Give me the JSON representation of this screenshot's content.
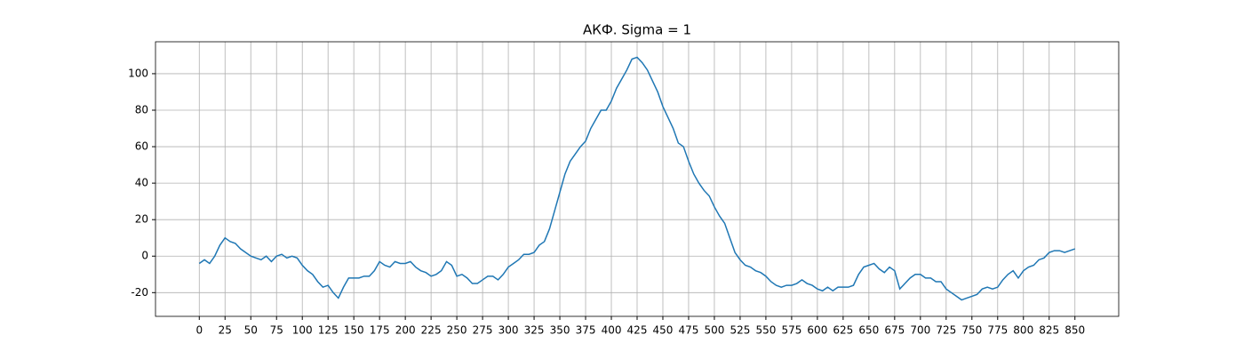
{
  "chart_data": {
    "type": "line",
    "title": "АКФ. Sigma = 1",
    "x": [
      0,
      5,
      10,
      15,
      20,
      25,
      30,
      35,
      40,
      45,
      50,
      55,
      60,
      65,
      70,
      75,
      80,
      85,
      90,
      95,
      100,
      105,
      110,
      115,
      120,
      125,
      130,
      135,
      140,
      145,
      150,
      155,
      160,
      165,
      170,
      175,
      180,
      185,
      190,
      195,
      200,
      205,
      210,
      215,
      220,
      225,
      230,
      235,
      240,
      245,
      250,
      255,
      260,
      265,
      270,
      275,
      280,
      285,
      290,
      295,
      300,
      305,
      310,
      315,
      320,
      325,
      330,
      335,
      340,
      345,
      350,
      355,
      360,
      365,
      370,
      375,
      380,
      385,
      390,
      395,
      400,
      405,
      410,
      415,
      420,
      425,
      430,
      435,
      440,
      445,
      450,
      455,
      460,
      465,
      470,
      475,
      480,
      485,
      490,
      495,
      500,
      505,
      510,
      515,
      520,
      525,
      530,
      535,
      540,
      545,
      550,
      555,
      560,
      565,
      570,
      575,
      580,
      585,
      590,
      595,
      600,
      605,
      610,
      615,
      620,
      625,
      630,
      635,
      640,
      645,
      650,
      655,
      660,
      665,
      670,
      675,
      680,
      685,
      690,
      695,
      700,
      705,
      710,
      715,
      720,
      725,
      730,
      735,
      740,
      745,
      750,
      755,
      760,
      765,
      770,
      775,
      780,
      785,
      790,
      795,
      800,
      805,
      810,
      815,
      820,
      825,
      830,
      835,
      840,
      845,
      850
    ],
    "series": [
      {
        "color": "#1f77b4",
        "values": [
          -4,
          -2,
          -4,
          0,
          6,
          10,
          8,
          7,
          4,
          2,
          0,
          -1,
          -2,
          0,
          -3,
          0,
          1,
          -1,
          0,
          -1,
          -5,
          -8,
          -10,
          -14,
          -17,
          -16,
          -20,
          -23,
          -17,
          -12,
          -12,
          -12,
          -11,
          -11,
          -8,
          -3,
          -5,
          -6,
          -3,
          -4,
          -4,
          -3,
          -6,
          -8,
          -9,
          -11,
          -10,
          -8,
          -3,
          -5,
          -11,
          -10,
          -12,
          -15,
          -15,
          -13,
          -11,
          -11,
          -13,
          -10,
          -6,
          -4,
          -2,
          1,
          1,
          2,
          6,
          8,
          15,
          25,
          35,
          45,
          52,
          56,
          60,
          63,
          70,
          75,
          80,
          80,
          85,
          92,
          97,
          102,
          108,
          109,
          106,
          102,
          96,
          90,
          82,
          76,
          70,
          62,
          60,
          52,
          45,
          40,
          36,
          33,
          27,
          22,
          18,
          10,
          2,
          -2,
          -5,
          -6,
          -8,
          -9,
          -11,
          -14,
          -16,
          -17,
          -16,
          -16,
          -15,
          -13,
          -15,
          -16,
          -18,
          -19,
          -17,
          -19,
          -17,
          -17,
          -17,
          -16,
          -10,
          -6,
          -5,
          -4,
          -7,
          -9,
          -6,
          -8,
          -18,
          -15,
          -12,
          -10,
          -10,
          -12,
          -12,
          -14,
          -14,
          -18,
          -20,
          -22,
          -24,
          -23,
          -22,
          -21,
          -18,
          -17,
          -18,
          -17,
          -13,
          -10,
          -8,
          -12,
          -8,
          -6,
          -5,
          -2,
          -1,
          2,
          3,
          3,
          2,
          3,
          4
        ]
      }
    ],
    "xlim": [
      -42.5,
      892.5
    ],
    "ylim": [
      -33,
      117.5
    ],
    "xticks": [
      0,
      25,
      50,
      75,
      100,
      125,
      150,
      175,
      200,
      225,
      250,
      275,
      300,
      325,
      350,
      375,
      400,
      425,
      450,
      475,
      500,
      525,
      550,
      575,
      600,
      625,
      650,
      675,
      700,
      725,
      750,
      775,
      800,
      825,
      850
    ],
    "yticks": [
      -20,
      0,
      20,
      40,
      60,
      80,
      100
    ],
    "grid": true
  }
}
